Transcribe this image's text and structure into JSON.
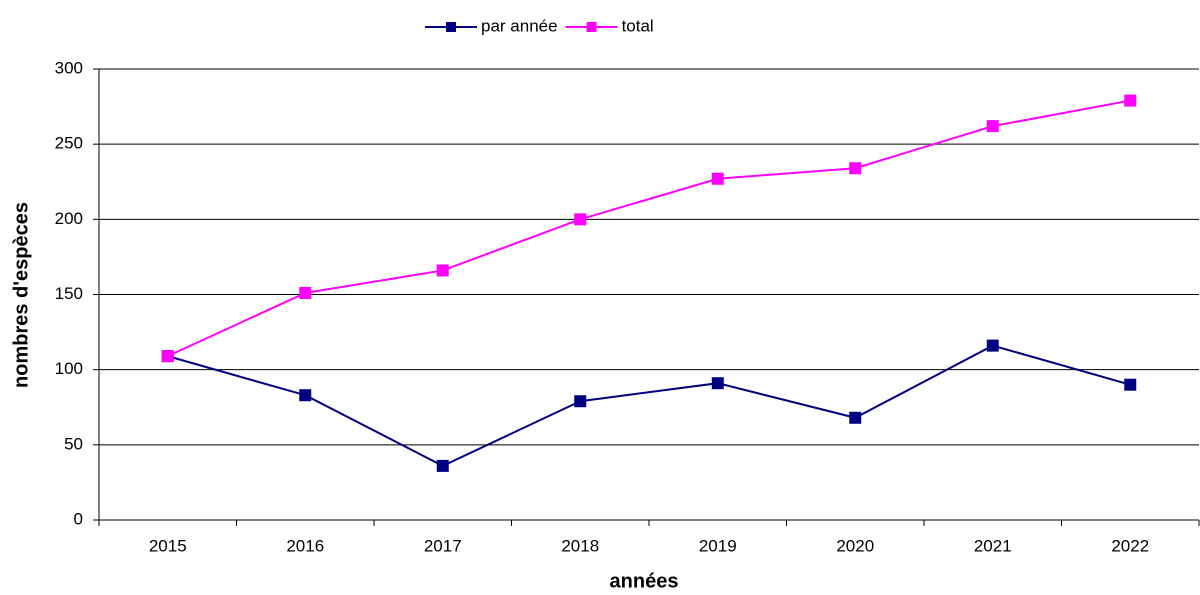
{
  "chart_data": {
    "type": "line",
    "categories": [
      "2015",
      "2016",
      "2017",
      "2018",
      "2019",
      "2020",
      "2021",
      "2022"
    ],
    "series": [
      {
        "name": "par année",
        "color": "#000080",
        "values": [
          109,
          83,
          36,
          79,
          91,
          68,
          116,
          90
        ]
      },
      {
        "name": "total",
        "color": "#ff00ff",
        "values": [
          109,
          151,
          166,
          200,
          227,
          234,
          262,
          279
        ]
      }
    ],
    "xlabel": "années",
    "ylabel": "nombres d'espèces",
    "ylim": [
      0,
      300
    ],
    "yticks": [
      0,
      50,
      100,
      150,
      200,
      250,
      300
    ],
    "grid": true,
    "legend": "top"
  }
}
